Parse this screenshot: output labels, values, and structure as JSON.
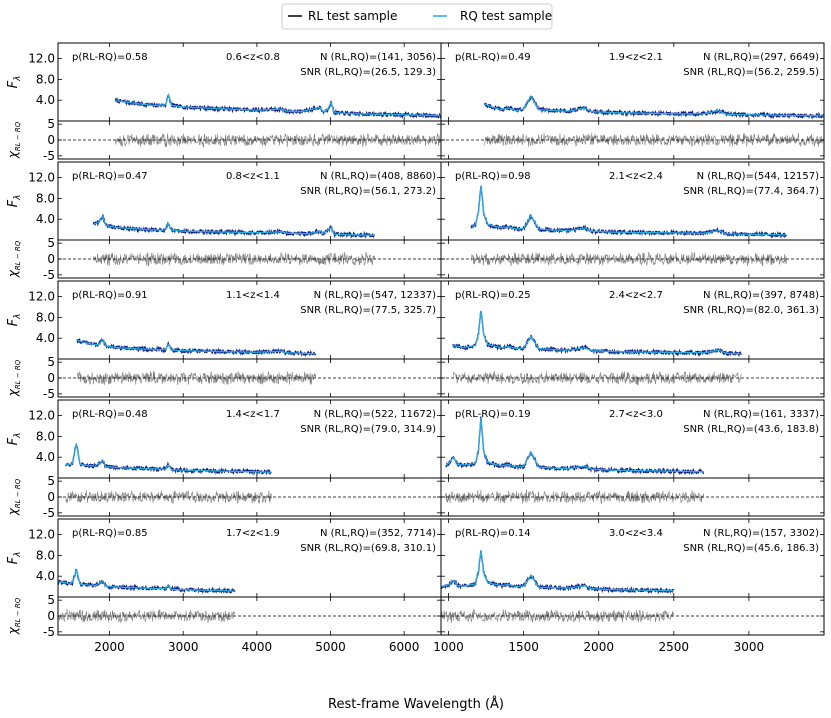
{
  "legend": {
    "placement": "top-center",
    "items": [
      {
        "label": "RL test sample",
        "color": "#000000"
      },
      {
        "label": "RQ test sample",
        "color": "#29abe2"
      }
    ]
  },
  "xlabel": "Rest-frame Wavelength (Å)",
  "panel_ylabel": "F",
  "panel_ylabel_sub": "λ",
  "resid_ylabel": "χ",
  "resid_ylabel_sub": "RL − RQ",
  "colors": {
    "rl": "#0b1f8a",
    "rq": "#29abe2",
    "resid": "#7a7a7a",
    "frame": "#000000"
  },
  "chart_data": {
    "type": "line",
    "flux_ticks": [
      "4.0",
      "8.0",
      "12.0"
    ],
    "flux_ylim": [
      0,
      15
    ],
    "resid_ticks": [
      "-5",
      "0",
      "5"
    ],
    "resid_ylim": [
      -6,
      6
    ],
    "columns": [
      {
        "xlim": [
          1300,
          6500
        ],
        "xticks": [
          2000,
          3000,
          4000,
          5000,
          6000
        ]
      },
      {
        "xlim": [
          950,
          3500
        ],
        "xticks": [
          1000,
          1500,
          2000,
          2500,
          3000
        ]
      }
    ],
    "panels": [
      {
        "col": 0,
        "row": 0,
        "p_label": "p(RL-RQ)=0.58",
        "z_label": "0.6<z<0.8",
        "n_label": "N (RL,RQ)=(141, 3056)",
        "snr_label": "SNR (RL,RQ)=(26.5, 129.3)",
        "flux": {
          "x": [
            2080,
            2200,
            2400,
            2600,
            2760,
            2800,
            2840,
            3000,
            3300,
            3600,
            4000,
            4340,
            4400,
            4600,
            4860,
            4900,
            4960,
            5007,
            5050,
            5300,
            5600,
            6000,
            6300,
            6500
          ],
          "y": [
            3.9,
            3.7,
            3.3,
            3.0,
            3.1,
            5.0,
            3.0,
            2.7,
            2.5,
            2.3,
            2.1,
            2.3,
            1.9,
            1.8,
            2.6,
            1.7,
            2.2,
            3.6,
            1.6,
            1.4,
            1.3,
            1.2,
            1.1,
            1.0
          ]
        },
        "resid_x": [
          2080,
          6500
        ]
      },
      {
        "col": 1,
        "row": 0,
        "p_label": "p(RL-RQ)=0.49",
        "z_label": "1.9<z<2.1",
        "n_label": "N (RL,RQ)=(297, 6649)",
        "snr_label": "SNR (RL,RQ)=(56.2, 259.5)",
        "flux": {
          "x": [
            1240,
            1300,
            1350,
            1400,
            1450,
            1500,
            1549,
            1600,
            1700,
            1800,
            1909,
            1950,
            2100,
            2300,
            2500,
            2700,
            2798,
            2850,
            3000,
            3200,
            3500
          ],
          "y": [
            3.2,
            2.6,
            2.2,
            2.5,
            2.0,
            2.3,
            4.8,
            2.2,
            2.0,
            1.9,
            2.5,
            1.8,
            1.6,
            1.5,
            1.4,
            1.4,
            2.0,
            1.3,
            1.2,
            1.1,
            1.0
          ]
        },
        "resid_x": [
          1240,
          3500
        ]
      },
      {
        "col": 0,
        "row": 1,
        "p_label": "p(RL-RQ)=0.47",
        "z_label": "0.8<z<1.1",
        "n_label": "N (RL,RQ)=(408, 8860)",
        "snr_label": "SNR (RL,RQ)=(56.1, 273.2)",
        "flux": {
          "x": [
            1780,
            1850,
            1909,
            1950,
            2100,
            2300,
            2500,
            2700,
            2760,
            2798,
            2840,
            3000,
            3300,
            3700,
            4000,
            4340,
            4400,
            4700,
            4860,
            4900,
            5007,
            5050,
            5300,
            5600
          ],
          "y": [
            3.0,
            3.4,
            4.6,
            2.8,
            2.4,
            2.2,
            2.0,
            1.9,
            1.9,
            3.2,
            1.9,
            1.7,
            1.6,
            1.5,
            1.4,
            1.6,
            1.3,
            1.2,
            1.7,
            1.2,
            2.4,
            1.1,
            1.0,
            0.9
          ]
        },
        "resid_x": [
          1780,
          5600
        ]
      },
      {
        "col": 1,
        "row": 1,
        "p_label": "p(RL-RQ)=0.98",
        "z_label": "2.1<z<2.4",
        "n_label": "N (RL,RQ)=(544, 12157)",
        "snr_label": "SNR (RL,RQ)=(77.4, 364.7)",
        "flux": {
          "x": [
            1150,
            1180,
            1200,
            1216,
            1235,
            1260,
            1300,
            1350,
            1400,
            1450,
            1500,
            1549,
            1600,
            1700,
            1800,
            1909,
            1950,
            2100,
            2400,
            2700,
            2798,
            2850,
            3000,
            3250
          ],
          "y": [
            2.2,
            3.0,
            5.5,
            10.5,
            5.0,
            3.0,
            2.7,
            2.4,
            2.5,
            2.1,
            2.2,
            4.7,
            2.1,
            1.9,
            1.8,
            2.3,
            1.7,
            1.5,
            1.4,
            1.3,
            1.8,
            1.2,
            1.1,
            1.0
          ]
        },
        "resid_x": [
          1150,
          3250
        ]
      },
      {
        "col": 0,
        "row": 2,
        "p_label": "p(RL-RQ)=0.91",
        "z_label": "1.1<z<1.4",
        "n_label": "N (RL,RQ)=(547, 12337)",
        "snr_label": "SNR (RL,RQ)=(77.5, 325.7)",
        "flux": {
          "x": [
            1560,
            1650,
            1750,
            1850,
            1909,
            1950,
            2100,
            2300,
            2500,
            2700,
            2760,
            2798,
            2840,
            3000,
            3300,
            3600,
            4000,
            4340,
            4400,
            4600,
            4800
          ],
          "y": [
            3.6,
            3.2,
            2.9,
            2.7,
            3.8,
            2.5,
            2.2,
            2.0,
            1.9,
            1.8,
            1.8,
            2.8,
            1.7,
            1.6,
            1.5,
            1.4,
            1.3,
            1.5,
            1.2,
            1.1,
            1.0
          ]
        },
        "resid_x": [
          1560,
          4800
        ]
      },
      {
        "col": 1,
        "row": 2,
        "p_label": "p(RL-RQ)=0.25",
        "z_label": "2.4<z<2.7",
        "n_label": "N (RL,RQ)=(397, 8748)",
        "snr_label": "SNR (RL,RQ)=(82.0, 361.3)",
        "flux": {
          "x": [
            1030,
            1100,
            1180,
            1200,
            1216,
            1235,
            1260,
            1300,
            1350,
            1400,
            1450,
            1500,
            1549,
            1600,
            1700,
            1800,
            1909,
            1950,
            2100,
            2400,
            2700,
            2798,
            2850,
            2950
          ],
          "y": [
            2.6,
            2.2,
            2.6,
            5.0,
            9.3,
            4.6,
            2.8,
            2.5,
            2.2,
            2.4,
            2.0,
            2.1,
            4.4,
            2.0,
            1.8,
            1.7,
            2.2,
            1.6,
            1.4,
            1.3,
            1.2,
            1.7,
            1.1,
            1.0
          ]
        },
        "resid_x": [
          1030,
          2950
        ]
      },
      {
        "col": 0,
        "row": 3,
        "p_label": "p(RL-RQ)=0.48",
        "z_label": "1.4<z<1.7",
        "n_label": "N (RL,RQ)=(522, 11672)",
        "snr_label": "SNR (RL,RQ)=(79.0, 314.9)",
        "flux": {
          "x": [
            1400,
            1450,
            1500,
            1549,
            1600,
            1700,
            1800,
            1909,
            1950,
            2100,
            2300,
            2500,
            2700,
            2760,
            2798,
            2840,
            3000,
            3300,
            3600,
            4000,
            4200
          ],
          "y": [
            2.7,
            2.5,
            2.9,
            6.7,
            2.6,
            2.4,
            2.3,
            3.3,
            2.2,
            2.0,
            1.9,
            1.8,
            1.7,
            1.7,
            2.5,
            1.6,
            1.5,
            1.4,
            1.3,
            1.2,
            1.1
          ]
        },
        "resid_x": [
          1400,
          4200
        ]
      },
      {
        "col": 1,
        "row": 3,
        "p_label": "p(RL-RQ)=0.19",
        "z_label": "2.7<z<3.0",
        "n_label": "N (RL,RQ)=(161, 3337)",
        "snr_label": "SNR (RL,RQ)=(43.6, 183.8)",
        "flux": {
          "x": [
            980,
            1000,
            1034,
            1060,
            1100,
            1180,
            1200,
            1216,
            1235,
            1260,
            1300,
            1350,
            1400,
            1450,
            1500,
            1549,
            1600,
            1700,
            1800,
            1909,
            1950,
            2100,
            2300,
            2500,
            2700
          ],
          "y": [
            2.4,
            2.8,
            4.0,
            2.6,
            2.5,
            2.8,
            5.5,
            11.6,
            5.0,
            3.0,
            2.7,
            2.3,
            2.6,
            2.1,
            2.2,
            5.0,
            2.1,
            1.9,
            1.8,
            2.3,
            1.7,
            1.5,
            1.4,
            1.3,
            1.2
          ]
        },
        "resid_x": [
          980,
          2700
        ]
      },
      {
        "col": 0,
        "row": 4,
        "p_label": "p(RL-RQ)=0.85",
        "z_label": "1.7<z<1.9",
        "n_label": "N (RL,RQ)=(352, 7714)",
        "snr_label": "SNR (RL,RQ)=(69.8, 310.1)",
        "flux": {
          "x": [
            1300,
            1400,
            1450,
            1500,
            1549,
            1600,
            1700,
            1800,
            1909,
            1950,
            2100,
            2300,
            2500,
            2700,
            2760,
            2798,
            2840,
            3000,
            3300,
            3600,
            3700
          ],
          "y": [
            2.9,
            2.8,
            2.5,
            2.8,
            5.3,
            2.5,
            2.3,
            2.2,
            3.0,
            2.1,
            1.9,
            1.8,
            1.7,
            1.6,
            1.6,
            2.3,
            1.5,
            1.4,
            1.3,
            1.2,
            1.1
          ]
        },
        "resid_x": [
          1300,
          3700
        ]
      },
      {
        "col": 1,
        "row": 4,
        "p_label": "p(RL-RQ)=0.14",
        "z_label": "3.0<z<3.4",
        "n_label": "N (RL,RQ)=(157, 3302)",
        "snr_label": "SNR (RL,RQ)=(45.6, 186.3)",
        "flux": {
          "x": [
            950,
            1000,
            1034,
            1060,
            1100,
            1180,
            1200,
            1216,
            1235,
            1260,
            1300,
            1350,
            1400,
            1450,
            1500,
            1549,
            1600,
            1700,
            1800,
            1909,
            1950,
            2100,
            2300,
            2500
          ],
          "y": [
            2.0,
            2.3,
            3.2,
            2.2,
            2.1,
            2.5,
            5.0,
            9.0,
            4.6,
            2.8,
            2.5,
            2.2,
            2.4,
            2.0,
            2.1,
            4.2,
            1.9,
            1.8,
            1.7,
            2.2,
            1.6,
            1.4,
            1.3,
            1.2
          ]
        },
        "resid_x": [
          950,
          2500
        ]
      }
    ]
  }
}
